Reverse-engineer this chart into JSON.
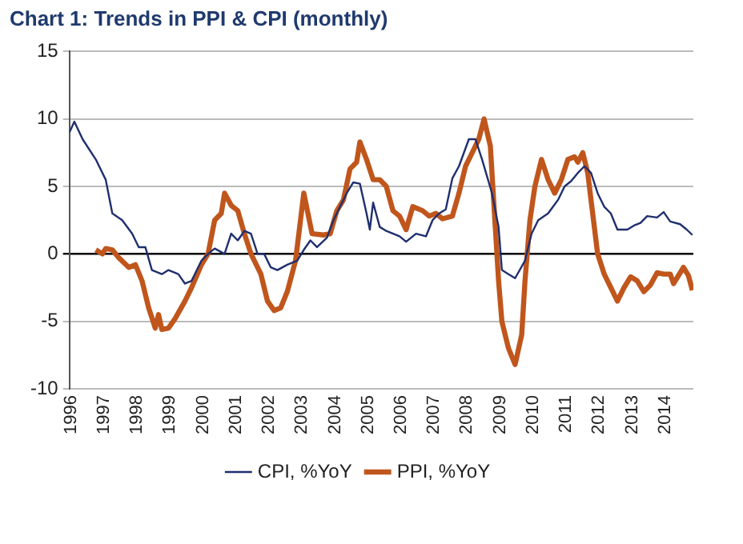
{
  "chart_data": {
    "type": "line",
    "title": "Chart 1: Trends in PPI & CPI (monthly)",
    "xlim": [
      1996,
      2014.9
    ],
    "xticks": [
      1996,
      1997,
      1998,
      1999,
      2000,
      2001,
      2002,
      2003,
      2004,
      2005,
      2006,
      2007,
      2008,
      2009,
      2010,
      2011,
      2012,
      2013,
      2014
    ],
    "ylim": [
      -10,
      15
    ],
    "yticks": [
      -10,
      -5,
      0,
      5,
      10,
      15
    ],
    "grid": "y",
    "legend": "bottom",
    "marker": "none",
    "line_style": "solid",
    "series": [
      {
        "name": "CPI, %YoY",
        "color": "#1f2f6e",
        "x": [
          1996.0,
          1996.15,
          1996.4,
          1996.8,
          1997.1,
          1997.3,
          1997.6,
          1997.9,
          1998.1,
          1998.3,
          1998.5,
          1998.8,
          1999.0,
          1999.3,
          1999.5,
          1999.7,
          2000.0,
          2000.2,
          2000.4,
          2000.7,
          2000.9,
          2001.1,
          2001.3,
          2001.5,
          2001.7,
          2001.9,
          2002.1,
          2002.3,
          2002.6,
          2002.9,
          2003.1,
          2003.3,
          2003.5,
          2003.8,
          2004.0,
          2004.2,
          2004.4,
          2004.6,
          2004.8,
          2005.0,
          2005.1,
          2005.2,
          2005.4,
          2005.6,
          2006.0,
          2006.2,
          2006.5,
          2006.8,
          2007.0,
          2007.2,
          2007.4,
          2007.6,
          2007.8,
          2008.1,
          2008.3,
          2008.5,
          2008.8,
          2009.0,
          2009.1,
          2009.3,
          2009.5,
          2009.8,
          2010.0,
          2010.2,
          2010.5,
          2010.8,
          2011.0,
          2011.2,
          2011.4,
          2011.6,
          2011.8,
          2012.0,
          2012.2,
          2012.4,
          2012.6,
          2012.9,
          2013.1,
          2013.3,
          2013.5,
          2013.8,
          2014.0,
          2014.2,
          2014.5,
          2014.7,
          2014.87
        ],
        "values": [
          9,
          9.8,
          8.5,
          7,
          5.5,
          3,
          2.5,
          1.5,
          0.5,
          0.5,
          -1.2,
          -1.5,
          -1.2,
          -1.5,
          -2.2,
          -2,
          -0.5,
          0,
          0.4,
          0,
          1.5,
          1,
          1.7,
          1.5,
          0,
          0,
          -1,
          -1.2,
          -0.8,
          -0.5,
          0.3,
          1,
          0.5,
          1.2,
          2.5,
          3.5,
          4.5,
          5.3,
          5.2,
          3,
          1.8,
          3.8,
          2,
          1.7,
          1.3,
          0.9,
          1.5,
          1.3,
          2.5,
          3,
          3.3,
          5.6,
          6.5,
          8.5,
          8.5,
          7,
          4.5,
          2,
          -1.2,
          -1.5,
          -1.8,
          -0.5,
          1.5,
          2.5,
          3,
          4,
          5,
          5.4,
          6,
          6.5,
          6,
          4.5,
          3.5,
          3,
          1.8,
          1.8,
          2.1,
          2.3,
          2.8,
          2.7,
          3.1,
          2.4,
          2.2,
          1.8,
          1.4
        ]
      },
      {
        "name": "PPI, %YoY",
        "color": "#c0561c",
        "x": [
          1996.8,
          1997.0,
          1997.1,
          1997.3,
          1997.5,
          1997.8,
          1998.0,
          1998.2,
          1998.4,
          1998.6,
          1998.7,
          1998.8,
          1999.0,
          1999.2,
          1999.5,
          1999.7,
          2000.0,
          2000.2,
          2000.4,
          2000.6,
          2000.7,
          2000.9,
          2001.1,
          2001.3,
          2001.5,
          2001.8,
          2002.0,
          2002.2,
          2002.4,
          2002.6,
          2002.85,
          2003.1,
          2003.35,
          2003.7,
          2003.9,
          2004.1,
          2004.3,
          2004.5,
          2004.7,
          2004.8,
          2005.0,
          2005.2,
          2005.4,
          2005.6,
          2005.8,
          2006.0,
          2006.2,
          2006.4,
          2006.7,
          2006.9,
          2007.1,
          2007.3,
          2007.6,
          2007.8,
          2008.0,
          2008.2,
          2008.4,
          2008.56,
          2008.75,
          2008.9,
          2009.0,
          2009.1,
          2009.3,
          2009.5,
          2009.7,
          2009.8,
          2009.95,
          2010.1,
          2010.3,
          2010.5,
          2010.7,
          2010.9,
          2011.1,
          2011.3,
          2011.4,
          2011.55,
          2011.7,
          2011.9,
          2012.0,
          2012.2,
          2012.4,
          2012.6,
          2012.8,
          2013.0,
          2013.2,
          2013.4,
          2013.6,
          2013.8,
          2014.0,
          2014.2,
          2014.3,
          2014.6,
          2014.75,
          2014.87
        ],
        "values": [
          0.3,
          0,
          0.4,
          0.3,
          -0.3,
          -1,
          -0.8,
          -2,
          -4,
          -5.5,
          -4.5,
          -5.6,
          -5.5,
          -4.8,
          -3.5,
          -2.5,
          -0.8,
          0,
          2.5,
          3,
          4.5,
          3.6,
          3.2,
          1.5,
          0,
          -1.5,
          -3.5,
          -4.2,
          -4,
          -2.8,
          -0.5,
          4.5,
          1.5,
          1.4,
          1.5,
          3.2,
          4,
          6.3,
          6.8,
          8.3,
          7,
          5.5,
          5.5,
          5,
          3.2,
          2.8,
          1.8,
          3.5,
          3.2,
          2.8,
          3,
          2.6,
          2.8,
          4.5,
          6.5,
          7.5,
          8.5,
          10,
          8,
          2,
          -2,
          -5,
          -7,
          -8.2,
          -6,
          -2,
          2.5,
          5,
          7,
          5.5,
          4.5,
          5.5,
          7,
          7.2,
          6.8,
          7.5,
          6,
          2,
          0,
          -1.5,
          -2.5,
          -3.5,
          -2.5,
          -1.7,
          -2,
          -2.8,
          -2.3,
          -1.4,
          -1.5,
          -1.5,
          -2.2,
          -1,
          -1.6,
          -2.7
        ]
      }
    ]
  }
}
